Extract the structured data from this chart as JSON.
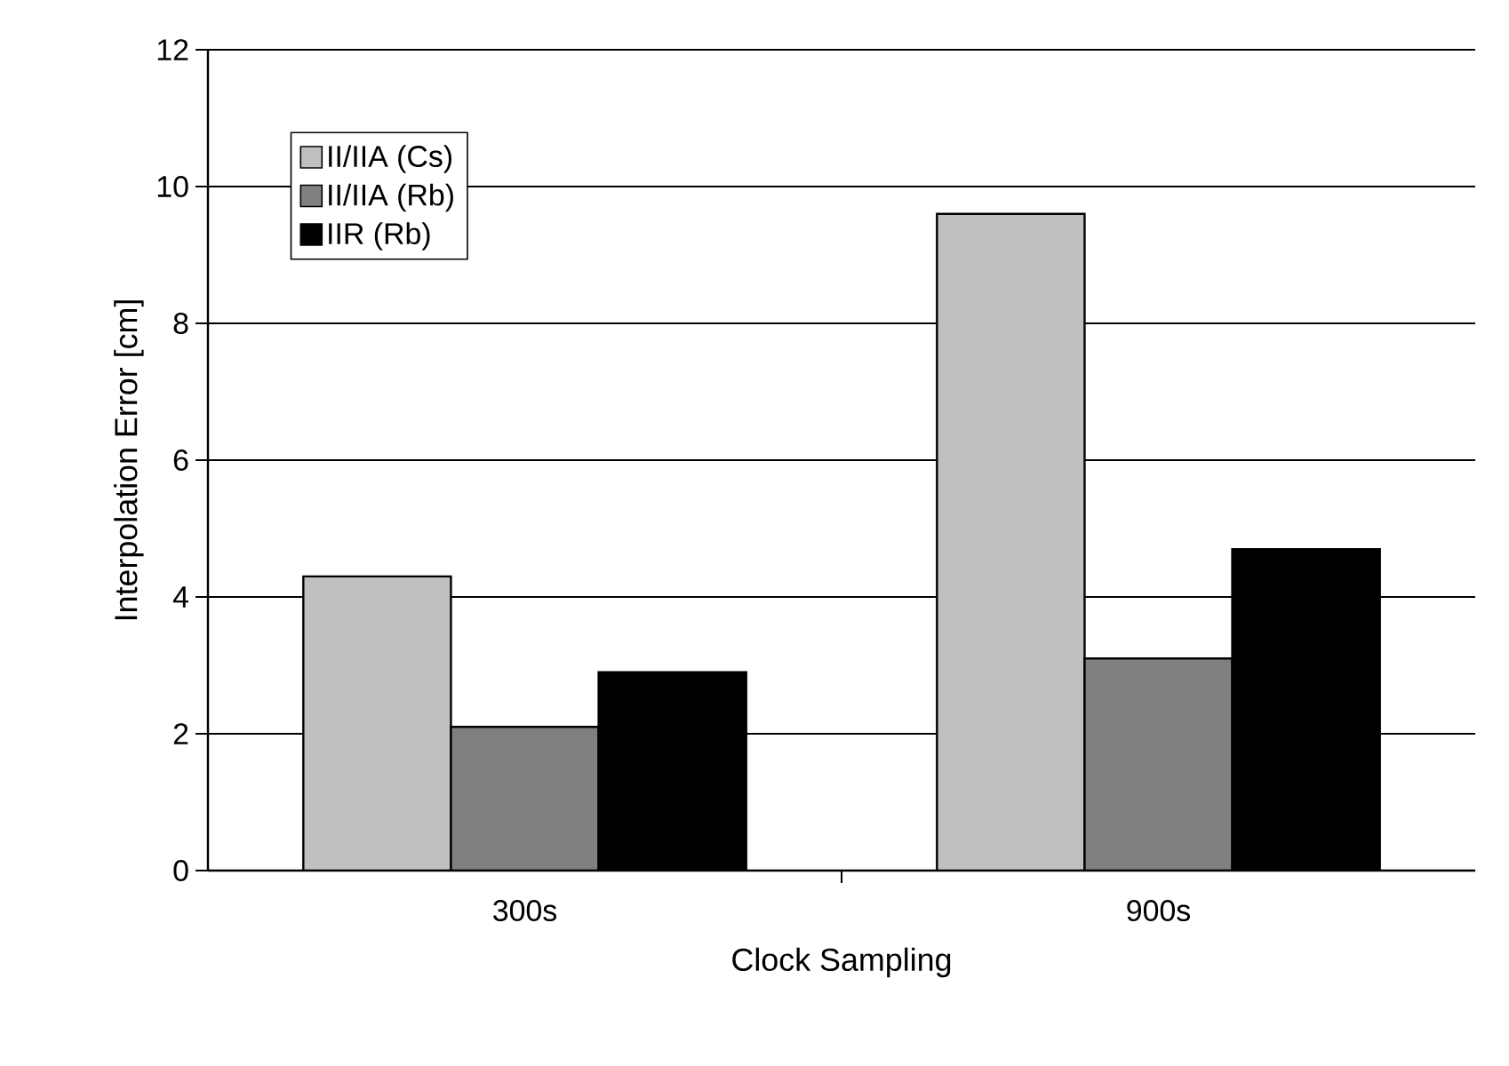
{
  "chart_data": {
    "type": "bar",
    "xlabel": "Clock Sampling",
    "ylabel": "Interpolation Error [cm]",
    "categories": [
      "300s",
      "900s"
    ],
    "series": [
      {
        "name": "II/IIA (Cs)",
        "color": "#c0c0c0",
        "values": [
          4.3,
          9.6
        ]
      },
      {
        "name": "II/IIA (Rb)",
        "color": "#808080",
        "values": [
          2.1,
          3.1
        ]
      },
      {
        "name": "IIR (Rb)",
        "color": "#000000",
        "values": [
          2.9,
          4.7
        ]
      }
    ],
    "ylim": [
      0,
      12
    ],
    "yticks": [
      0,
      2,
      4,
      6,
      8,
      10,
      12
    ],
    "grid": "y",
    "legend": "top left"
  }
}
